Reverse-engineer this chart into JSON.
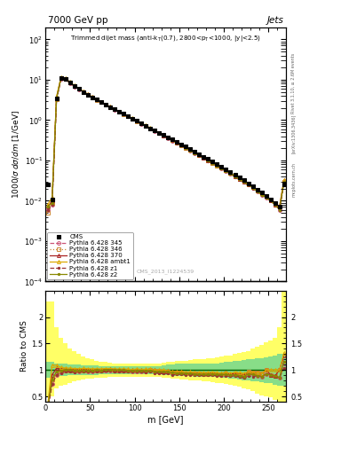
{
  "title_top": "7000 GeV pp",
  "title_right": "Jets",
  "ylabel_main": "1000/σ dσ/dm [1/GeV]",
  "ylabel_ratio": "Ratio to CMS",
  "xlabel": "m [GeV]",
  "watermark": "CMS_2013_I1224539",
  "rivet_label": "Rivet 3.1.10, ≥ 2.6M events",
  "arxiv_label": "[arXiv:1306.3436]",
  "mcplots_label": "mcplots.cern.ch",
  "xlim": [
    0,
    270
  ],
  "ylim_main_lo": 0.0001,
  "ylim_main_hi": 200,
  "ylim_ratio_lo": 0.4,
  "ylim_ratio_hi": 2.5,
  "m_values": [
    2.5,
    7.5,
    12.5,
    17.5,
    22.5,
    27.5,
    32.5,
    37.5,
    42.5,
    47.5,
    52.5,
    57.5,
    62.5,
    67.5,
    72.5,
    77.5,
    82.5,
    87.5,
    92.5,
    97.5,
    102.5,
    107.5,
    112.5,
    117.5,
    122.5,
    127.5,
    132.5,
    137.5,
    142.5,
    147.5,
    152.5,
    157.5,
    162.5,
    167.5,
    172.5,
    177.5,
    182.5,
    187.5,
    192.5,
    197.5,
    202.5,
    207.5,
    212.5,
    217.5,
    222.5,
    227.5,
    232.5,
    237.5,
    242.5,
    247.5,
    252.5,
    257.5,
    262.5,
    267.5
  ],
  "cms_values": [
    0.025,
    0.011,
    3.5,
    11.0,
    10.5,
    8.5,
    7.0,
    6.0,
    5.0,
    4.3,
    3.7,
    3.2,
    2.8,
    2.4,
    2.1,
    1.85,
    1.62,
    1.42,
    1.25,
    1.1,
    0.95,
    0.83,
    0.73,
    0.63,
    0.56,
    0.49,
    0.43,
    0.375,
    0.33,
    0.29,
    0.25,
    0.22,
    0.19,
    0.165,
    0.145,
    0.125,
    0.108,
    0.093,
    0.081,
    0.07,
    0.06,
    0.052,
    0.044,
    0.038,
    0.033,
    0.027,
    0.023,
    0.019,
    0.016,
    0.013,
    0.011,
    0.009,
    0.007,
    0.025
  ],
  "py345_values": [
    0.006,
    0.008,
    3.2,
    10.5,
    10.3,
    8.3,
    6.8,
    5.85,
    4.9,
    4.2,
    3.6,
    3.15,
    2.75,
    2.38,
    2.08,
    1.82,
    1.6,
    1.4,
    1.23,
    1.07,
    0.93,
    0.81,
    0.71,
    0.62,
    0.54,
    0.47,
    0.41,
    0.36,
    0.31,
    0.27,
    0.235,
    0.205,
    0.177,
    0.153,
    0.133,
    0.115,
    0.099,
    0.086,
    0.074,
    0.064,
    0.055,
    0.047,
    0.04,
    0.034,
    0.029,
    0.025,
    0.021,
    0.017,
    0.014,
    0.012,
    0.01,
    0.008,
    0.006,
    0.028
  ],
  "py346_values": [
    0.005,
    0.009,
    3.3,
    10.8,
    10.4,
    8.4,
    6.9,
    5.9,
    4.95,
    4.25,
    3.65,
    3.18,
    2.78,
    2.4,
    2.1,
    1.84,
    1.61,
    1.41,
    1.24,
    1.08,
    0.94,
    0.82,
    0.72,
    0.63,
    0.55,
    0.48,
    0.42,
    0.365,
    0.315,
    0.275,
    0.238,
    0.207,
    0.179,
    0.155,
    0.135,
    0.116,
    0.1,
    0.087,
    0.075,
    0.065,
    0.056,
    0.048,
    0.041,
    0.035,
    0.03,
    0.026,
    0.022,
    0.018,
    0.015,
    0.013,
    0.01,
    0.008,
    0.007,
    0.03
  ],
  "py370_values": [
    0.007,
    0.01,
    3.6,
    11.2,
    10.7,
    8.6,
    7.05,
    6.05,
    5.05,
    4.35,
    3.72,
    3.23,
    2.82,
    2.43,
    2.13,
    1.87,
    1.63,
    1.43,
    1.26,
    1.1,
    0.96,
    0.83,
    0.73,
    0.63,
    0.56,
    0.48,
    0.42,
    0.37,
    0.32,
    0.28,
    0.242,
    0.21,
    0.182,
    0.157,
    0.137,
    0.118,
    0.102,
    0.088,
    0.076,
    0.066,
    0.057,
    0.048,
    0.041,
    0.035,
    0.03,
    0.026,
    0.022,
    0.018,
    0.015,
    0.013,
    0.01,
    0.008,
    0.007,
    0.032
  ],
  "pyambt1_values": [
    0.008,
    0.012,
    3.8,
    11.5,
    10.9,
    8.8,
    7.2,
    6.15,
    5.15,
    4.42,
    3.78,
    3.28,
    2.86,
    2.47,
    2.16,
    1.89,
    1.65,
    1.45,
    1.27,
    1.11,
    0.97,
    0.84,
    0.74,
    0.64,
    0.56,
    0.49,
    0.43,
    0.37,
    0.32,
    0.28,
    0.243,
    0.211,
    0.183,
    0.158,
    0.138,
    0.119,
    0.103,
    0.089,
    0.077,
    0.066,
    0.057,
    0.049,
    0.042,
    0.036,
    0.031,
    0.026,
    0.022,
    0.018,
    0.015,
    0.013,
    0.011,
    0.009,
    0.007,
    0.033
  ],
  "pyz1_values": [
    0.006,
    0.008,
    3.2,
    10.4,
    10.2,
    8.2,
    6.7,
    5.8,
    4.85,
    4.18,
    3.58,
    3.12,
    2.72,
    2.36,
    2.06,
    1.8,
    1.58,
    1.38,
    1.21,
    1.06,
    0.92,
    0.8,
    0.7,
    0.61,
    0.53,
    0.46,
    0.4,
    0.35,
    0.3,
    0.265,
    0.23,
    0.2,
    0.173,
    0.15,
    0.13,
    0.112,
    0.097,
    0.084,
    0.072,
    0.062,
    0.053,
    0.046,
    0.039,
    0.033,
    0.028,
    0.024,
    0.02,
    0.017,
    0.014,
    0.012,
    0.01,
    0.008,
    0.006,
    0.026
  ],
  "pyz2_values": [
    0.007,
    0.009,
    3.4,
    10.9,
    10.5,
    8.5,
    6.95,
    5.95,
    4.98,
    4.28,
    3.67,
    3.19,
    2.79,
    2.41,
    2.11,
    1.85,
    1.62,
    1.42,
    1.24,
    1.09,
    0.945,
    0.825,
    0.72,
    0.625,
    0.545,
    0.475,
    0.415,
    0.362,
    0.313,
    0.273,
    0.236,
    0.205,
    0.177,
    0.153,
    0.133,
    0.115,
    0.099,
    0.086,
    0.074,
    0.064,
    0.055,
    0.047,
    0.04,
    0.034,
    0.029,
    0.025,
    0.021,
    0.017,
    0.014,
    0.012,
    0.01,
    0.008,
    0.006,
    0.029
  ],
  "color_345": "#cc5577",
  "color_346": "#cc8833",
  "color_370": "#aa2222",
  "color_ambt1": "#ddaa00",
  "color_z1": "#993333",
  "color_z2": "#888800",
  "color_cms": "#000000",
  "bg_green": "#88dd88",
  "bg_yellow": "#ffff66",
  "ratio_345": [
    0.24,
    0.73,
    0.91,
    0.95,
    0.98,
    0.98,
    0.97,
    0.975,
    0.98,
    0.977,
    0.973,
    0.984,
    0.982,
    0.992,
    0.99,
    0.984,
    0.988,
    0.986,
    0.984,
    0.973,
    0.979,
    0.976,
    0.973,
    0.984,
    0.964,
    0.959,
    0.953,
    0.96,
    0.939,
    0.931,
    0.94,
    0.932,
    0.932,
    0.927,
    0.917,
    0.92,
    0.917,
    0.925,
    0.914,
    0.914,
    0.917,
    0.904,
    0.909,
    0.895,
    0.879,
    0.926,
    0.913,
    0.895,
    0.875,
    0.923,
    0.909,
    0.889,
    0.857,
    1.12
  ],
  "ratio_346": [
    0.2,
    0.82,
    0.94,
    0.98,
    0.99,
    0.988,
    0.986,
    0.983,
    0.99,
    0.988,
    0.986,
    0.994,
    0.993,
    1.0,
    1.0,
    0.995,
    0.994,
    0.993,
    0.992,
    0.982,
    0.989,
    0.988,
    0.986,
    1.0,
    0.982,
    0.98,
    0.977,
    0.973,
    0.955,
    0.948,
    0.952,
    0.941,
    0.942,
    0.939,
    0.931,
    0.928,
    0.926,
    0.935,
    0.926,
    0.929,
    0.933,
    0.923,
    0.932,
    0.921,
    0.909,
    0.963,
    0.957,
    0.947,
    0.938,
    1.0,
    0.909,
    0.889,
    1.0,
    1.2
  ],
  "ratio_370": [
    0.28,
    0.91,
    1.03,
    1.02,
    1.019,
    1.012,
    1.007,
    1.008,
    1.01,
    1.012,
    1.005,
    1.009,
    1.007,
    1.013,
    1.014,
    1.011,
    1.006,
    1.007,
    1.008,
    1.0,
    1.011,
    1.0,
    1.0,
    1.0,
    1.0,
    0.98,
    0.977,
    0.987,
    0.97,
    0.966,
    0.968,
    0.955,
    0.958,
    0.952,
    0.945,
    0.944,
    0.944,
    0.946,
    0.938,
    0.943,
    0.95,
    0.923,
    0.932,
    0.921,
    0.909,
    0.963,
    0.957,
    0.947,
    0.938,
    1.0,
    0.909,
    0.889,
    1.0,
    1.28
  ],
  "ratio_ambt1": [
    0.32,
    1.09,
    1.09,
    1.05,
    1.038,
    1.035,
    1.029,
    1.025,
    1.03,
    1.028,
    1.022,
    1.025,
    1.021,
    1.029,
    1.029,
    1.022,
    1.019,
    1.021,
    1.016,
    1.009,
    1.021,
    1.012,
    1.014,
    1.016,
    1.0,
    1.0,
    1.0,
    0.987,
    0.97,
    0.966,
    0.972,
    0.959,
    0.963,
    0.958,
    0.952,
    0.952,
    0.954,
    0.957,
    0.951,
    0.943,
    0.95,
    0.942,
    0.955,
    0.947,
    0.939,
    0.963,
    0.957,
    0.947,
    0.938,
    1.0,
    1.0,
    1.0,
    1.0,
    1.32
  ],
  "ratio_z1": [
    0.24,
    0.73,
    0.91,
    0.945,
    0.971,
    0.965,
    0.957,
    0.967,
    0.97,
    0.972,
    0.968,
    0.975,
    0.971,
    0.983,
    0.981,
    0.973,
    0.975,
    0.972,
    0.968,
    0.964,
    0.968,
    0.964,
    0.959,
    0.968,
    0.946,
    0.939,
    0.93,
    0.933,
    0.909,
    0.914,
    0.92,
    0.909,
    0.911,
    0.909,
    0.897,
    0.896,
    0.898,
    0.903,
    0.889,
    0.886,
    0.883,
    0.885,
    0.886,
    0.868,
    0.848,
    0.889,
    0.87,
    0.895,
    0.875,
    0.923,
    0.909,
    0.889,
    0.857,
    1.04
  ],
  "ratio_z2": [
    0.28,
    0.82,
    0.97,
    0.99,
    1.0,
    1.0,
    0.993,
    0.992,
    0.996,
    0.995,
    0.992,
    0.997,
    0.996,
    1.004,
    1.005,
    1.0,
    1.0,
    1.0,
    0.992,
    0.991,
    0.995,
    0.994,
    0.986,
    0.992,
    0.973,
    0.969,
    0.965,
    0.965,
    0.949,
    0.941,
    0.944,
    0.932,
    0.932,
    0.927,
    0.917,
    0.92,
    0.917,
    0.925,
    0.914,
    0.914,
    0.917,
    0.904,
    0.909,
    0.895,
    0.879,
    0.926,
    0.913,
    0.895,
    0.875,
    0.923,
    0.909,
    0.889,
    0.857,
    1.16
  ],
  "ratio_green_lo": [
    0.85,
    0.85,
    0.88,
    0.88,
    0.88,
    0.9,
    0.9,
    0.9,
    0.91,
    0.91,
    0.91,
    0.91,
    0.92,
    0.92,
    0.92,
    0.92,
    0.92,
    0.92,
    0.92,
    0.92,
    0.92,
    0.92,
    0.92,
    0.92,
    0.92,
    0.92,
    0.91,
    0.9,
    0.89,
    0.88,
    0.88,
    0.88,
    0.88,
    0.87,
    0.87,
    0.87,
    0.87,
    0.87,
    0.87,
    0.86,
    0.85,
    0.84,
    0.83,
    0.82,
    0.81,
    0.8,
    0.79,
    0.78,
    0.77,
    0.76,
    0.75,
    0.72,
    0.7,
    0.7
  ],
  "ratio_green_hi": [
    1.15,
    1.15,
    1.12,
    1.12,
    1.12,
    1.1,
    1.1,
    1.1,
    1.09,
    1.09,
    1.09,
    1.09,
    1.08,
    1.08,
    1.08,
    1.08,
    1.08,
    1.08,
    1.08,
    1.08,
    1.08,
    1.08,
    1.08,
    1.08,
    1.08,
    1.08,
    1.09,
    1.1,
    1.11,
    1.12,
    1.12,
    1.12,
    1.12,
    1.13,
    1.13,
    1.13,
    1.13,
    1.13,
    1.13,
    1.14,
    1.15,
    1.16,
    1.17,
    1.18,
    1.19,
    1.2,
    1.21,
    1.22,
    1.23,
    1.24,
    1.25,
    1.28,
    1.3,
    1.3
  ],
  "ratio_yellow_lo": [
    0.5,
    0.5,
    0.65,
    0.7,
    0.72,
    0.75,
    0.78,
    0.8,
    0.82,
    0.83,
    0.84,
    0.85,
    0.86,
    0.86,
    0.87,
    0.87,
    0.87,
    0.87,
    0.87,
    0.87,
    0.87,
    0.87,
    0.87,
    0.87,
    0.87,
    0.87,
    0.86,
    0.85,
    0.84,
    0.83,
    0.82,
    0.82,
    0.81,
    0.8,
    0.8,
    0.79,
    0.78,
    0.77,
    0.76,
    0.75,
    0.73,
    0.72,
    0.7,
    0.68,
    0.66,
    0.64,
    0.6,
    0.56,
    0.52,
    0.5,
    0.48,
    0.44,
    0.4,
    0.4
  ],
  "ratio_yellow_hi": [
    2.3,
    2.3,
    1.8,
    1.6,
    1.5,
    1.4,
    1.35,
    1.3,
    1.25,
    1.22,
    1.2,
    1.18,
    1.16,
    1.15,
    1.14,
    1.13,
    1.13,
    1.13,
    1.13,
    1.13,
    1.13,
    1.13,
    1.13,
    1.13,
    1.13,
    1.13,
    1.14,
    1.15,
    1.16,
    1.17,
    1.18,
    1.18,
    1.19,
    1.2,
    1.2,
    1.21,
    1.22,
    1.23,
    1.24,
    1.25,
    1.27,
    1.28,
    1.3,
    1.32,
    1.34,
    1.36,
    1.4,
    1.44,
    1.48,
    1.52,
    1.55,
    1.6,
    1.8,
    2.5
  ]
}
